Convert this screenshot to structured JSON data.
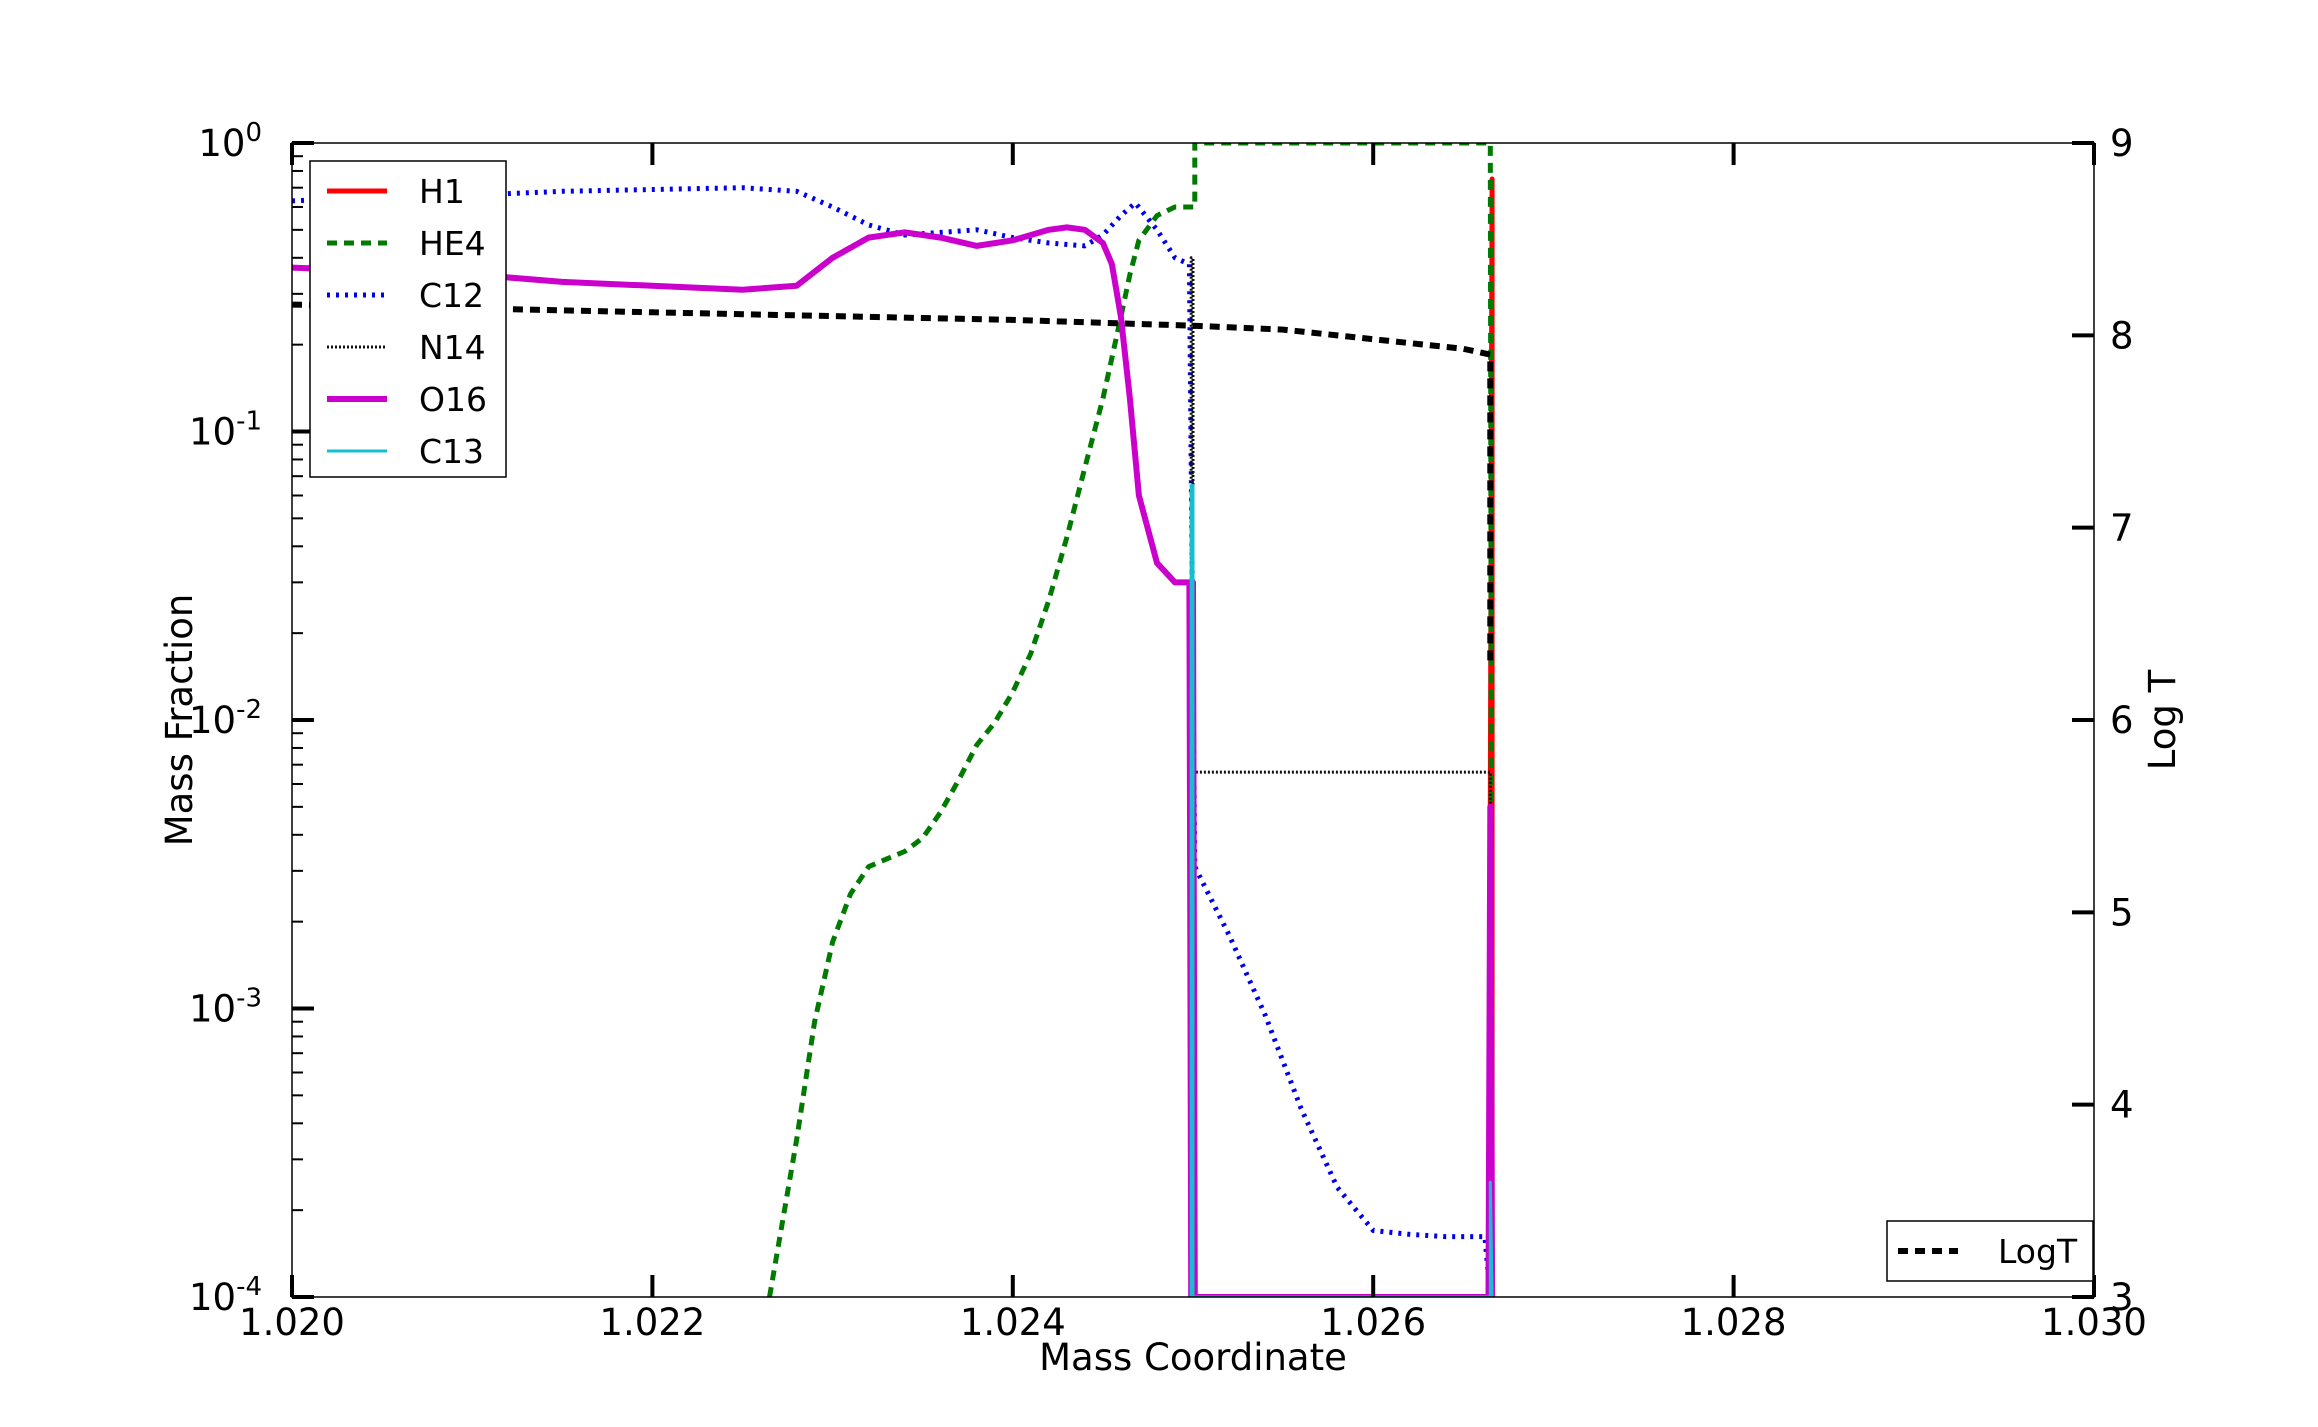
{
  "chart_data": {
    "type": "line",
    "xlabel": "Mass Coordinate",
    "ylabel": "Mass Fraction",
    "y2label": "Log T",
    "xlim": [
      1.02,
      1.03
    ],
    "ylim": [
      0.0001,
      1
    ],
    "y2lim": [
      3,
      9
    ],
    "yscale": "log",
    "grid": false,
    "x_ticks": [
      "1.020",
      "1.022",
      "1.024",
      "1.026",
      "1.028",
      "1.030"
    ],
    "x_tick_values": [
      1.02,
      1.022,
      1.024,
      1.026,
      1.028,
      1.03
    ],
    "y_ticks": [
      {
        "base": "10",
        "exp": "-4",
        "value": 0.0001
      },
      {
        "base": "10",
        "exp": "-3",
        "value": 0.001
      },
      {
        "base": "10",
        "exp": "-2",
        "value": 0.01
      },
      {
        "base": "10",
        "exp": "-1",
        "value": 0.1
      },
      {
        "base": "10",
        "exp": "0",
        "value": 1
      }
    ],
    "y2_ticks": [
      "3",
      "4",
      "5",
      "6",
      "7",
      "8",
      "9"
    ],
    "legend_left_position": "top-left",
    "legend_right_position": "bottom-right",
    "series": [
      {
        "name": "H1",
        "axis": "left",
        "color": "#ff0000",
        "style": "solid",
        "width": 5,
        "x": [
          1.02665,
          1.02665,
          1.02666,
          1.02666
        ],
        "y": [
          0.0001,
          0.005,
          0.75,
          0.0001
        ]
      },
      {
        "name": "HE4",
        "axis": "left",
        "color": "#007a00",
        "style": "dashed",
        "width": 5,
        "x": [
          1.02265,
          1.0228,
          1.0229,
          1.023,
          1.0231,
          1.0232,
          1.0233,
          1.0234,
          1.0235,
          1.0236,
          1.0237,
          1.0238,
          1.0239,
          1.024,
          1.0241,
          1.0242,
          1.0243,
          1.0244,
          1.0245,
          1.02455,
          1.0246,
          1.02465,
          1.0247,
          1.0248,
          1.0249,
          1.02498,
          1.02501,
          1.02501,
          1.0255,
          1.026,
          1.0265,
          1.02665,
          1.02666
        ],
        "y": [
          0.0001,
          0.00035,
          0.0009,
          0.0017,
          0.0025,
          0.0031,
          0.0033,
          0.0035,
          0.0039,
          0.0048,
          0.0062,
          0.0082,
          0.0098,
          0.0125,
          0.017,
          0.026,
          0.043,
          0.075,
          0.13,
          0.18,
          0.25,
          0.35,
          0.46,
          0.56,
          0.6,
          0.6,
          0.6,
          1.0,
          1.0,
          1.0,
          1.0,
          1.0,
          0.0001
        ]
      },
      {
        "name": "C12",
        "axis": "left",
        "color": "#0000ee",
        "style": "dotted",
        "width": 5,
        "x": [
          1.02,
          1.0205,
          1.021,
          1.0215,
          1.022,
          1.0225,
          1.0228,
          1.023,
          1.0232,
          1.0234,
          1.0236,
          1.0238,
          1.024,
          1.0242,
          1.0244,
          1.0245,
          1.0246,
          1.02468,
          1.0248,
          1.0249,
          1.02498,
          1.02501,
          1.0252,
          1.0254,
          1.0256,
          1.0258,
          1.026,
          1.0262,
          1.0264,
          1.02662,
          1.02665
        ],
        "y": [
          0.63,
          0.65,
          0.66,
          0.68,
          0.69,
          0.7,
          0.68,
          0.6,
          0.52,
          0.48,
          0.49,
          0.5,
          0.47,
          0.45,
          0.44,
          0.48,
          0.56,
          0.62,
          0.5,
          0.4,
          0.38,
          0.0031,
          0.0018,
          0.00095,
          0.00045,
          0.00024,
          0.00017,
          0.000165,
          0.000162,
          0.000162,
          0.0001
        ]
      },
      {
        "name": "N14",
        "axis": "left",
        "color": "#111111",
        "style": "densely-dotted",
        "width": 3,
        "x": [
          1.02498,
          1.02499,
          1.02499,
          1.025,
          1.025,
          1.02505,
          1.0255,
          1.026,
          1.0265,
          1.02665,
          1.02665
        ],
        "y": [
          0.0001,
          0.0001,
          0.4,
          0.4,
          0.0066,
          0.0066,
          0.0066,
          0.0066,
          0.0066,
          0.0066,
          0.0001
        ]
      },
      {
        "name": "O16",
        "axis": "left",
        "color": "#cc00cc",
        "style": "solid",
        "width": 6,
        "x": [
          1.02,
          1.0205,
          1.021,
          1.0215,
          1.022,
          1.0225,
          1.0228,
          1.023,
          1.0232,
          1.0234,
          1.0236,
          1.0238,
          1.024,
          1.0242,
          1.0243,
          1.0244,
          1.0245,
          1.02455,
          1.0246,
          1.02465,
          1.0247,
          1.0248,
          1.0249,
          1.02498,
          1.02499,
          1.025,
          1.02501,
          1.02664,
          1.02665,
          1.02666
        ],
        "y": [
          0.37,
          0.36,
          0.35,
          0.33,
          0.32,
          0.31,
          0.32,
          0.4,
          0.47,
          0.49,
          0.47,
          0.44,
          0.46,
          0.5,
          0.51,
          0.5,
          0.45,
          0.38,
          0.25,
          0.13,
          0.06,
          0.035,
          0.03,
          0.03,
          0.0001,
          0.03,
          0.0001,
          0.0001,
          0.005,
          0.0001
        ]
      },
      {
        "name": "C13",
        "axis": "left",
        "color": "#17becf",
        "style": "solid",
        "width": 3,
        "x": [
          1.02499,
          1.02499,
          1.025,
          1.025,
          1.02665,
          1.02665,
          1.02666
        ],
        "y": [
          0.0001,
          0.065,
          0.065,
          0.0001,
          0.0001,
          0.00025,
          0.0001
        ]
      },
      {
        "name": "LogT",
        "axis": "right",
        "color": "#000000",
        "style": "dashed",
        "width": 6,
        "x": [
          1.02,
          1.021,
          1.022,
          1.023,
          1.024,
          1.025,
          1.0255,
          1.026,
          1.0265,
          1.02665,
          1.02665
        ],
        "y": [
          8.16,
          8.14,
          8.12,
          8.1,
          8.08,
          8.05,
          8.03,
          7.98,
          7.93,
          7.9,
          6.3
        ]
      }
    ]
  }
}
